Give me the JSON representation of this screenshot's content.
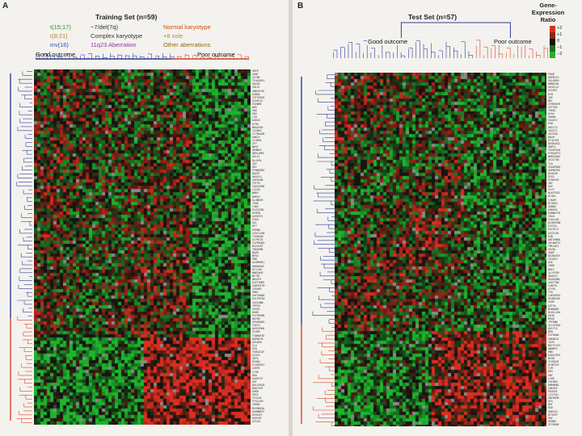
{
  "panel_a": {
    "letter": "A",
    "title": "Training Set (n=59)",
    "legend": [
      {
        "text": "t(15;17)",
        "color": "#2e8b2e"
      },
      {
        "text": "−7/del(7q)",
        "color": "#333333"
      },
      {
        "text": "Normal karyotype",
        "color": "#d14a14"
      },
      {
        "text": "t(8;21)",
        "color": "#b08a18"
      },
      {
        "text": "Complex karyotype",
        "color": "#333333"
      },
      {
        "text": "+8 sole",
        "color": "#a0a020"
      },
      {
        "text": "inv(16)",
        "color": "#3850a8"
      },
      {
        "text": "11q23 Aberration",
        "color": "#8a3aa0"
      },
      {
        "text": "Other aberrations",
        "color": "#8a6a10"
      }
    ],
    "good_label": "Good outcome",
    "poor_label": "Poor outcome"
  },
  "panel_b": {
    "letter": "B",
    "title": "Test Set (n=57)",
    "good_label": "Good outcome",
    "poor_label": "Poor outcome"
  },
  "scale": {
    "title_lines": [
      "Gene-",
      "Expression",
      "Ratio"
    ],
    "ticks": [
      "+2",
      "+1",
      "0",
      "−1",
      "−2"
    ],
    "colors": [
      "#d8331f",
      "#8a2a18",
      "#141414",
      "#1d6e22",
      "#25b02c"
    ]
  },
  "colors": {
    "red": "#d8331f",
    "green": "#26a830",
    "dark": "#141414",
    "good_tree": "#2f3f9a",
    "poor_tree": "#d8452a",
    "missing": "#8a8a8a"
  }
}
